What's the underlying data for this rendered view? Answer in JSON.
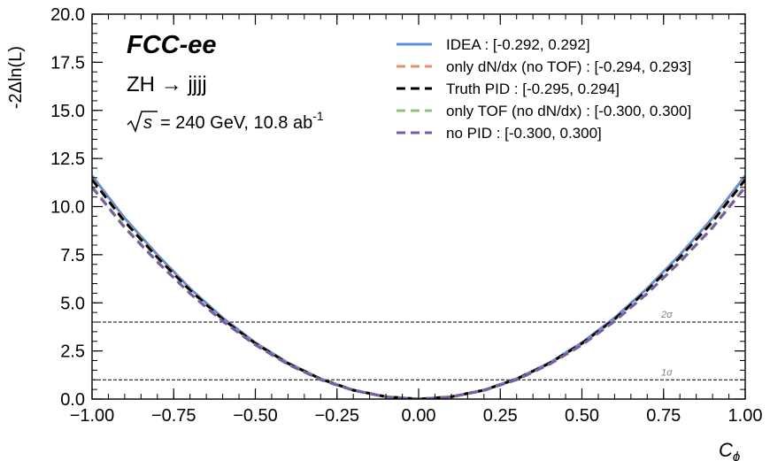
{
  "chart_data": {
    "type": "line",
    "title": "",
    "experiment_label": "FCC-ee",
    "process_label": "ZH → jjjj",
    "energy_label_prefix": "= 240 GeV, 10.8 ab",
    "energy_label_exp": "-1",
    "xlabel": "C",
    "xlabel_sub": "ϕ",
    "ylabel": "-2Δln(L)",
    "xlim": [
      -1.0,
      1.0
    ],
    "ylim": [
      0.0,
      20.0
    ],
    "x_ticks": [
      -1.0,
      -0.75,
      -0.5,
      -0.25,
      0.0,
      0.25,
      0.5,
      0.75,
      1.0
    ],
    "x_tick_labels": [
      "−1.00",
      "−0.75",
      "−0.50",
      "−0.25",
      "0.00",
      "0.25",
      "0.50",
      "0.75",
      "1.00"
    ],
    "y_ticks": [
      0.0,
      2.5,
      5.0,
      7.5,
      10.0,
      12.5,
      15.0,
      17.5,
      20.0
    ],
    "y_tick_labels": [
      "0.0",
      "2.5",
      "5.0",
      "7.5",
      "10.0",
      "12.5",
      "15.0",
      "17.5",
      "20.0"
    ],
    "grid": false,
    "legend_position": "top-right",
    "reference_lines": [
      {
        "y": 1.0,
        "label": "1σ"
      },
      {
        "y": 4.0,
        "label": "2σ"
      }
    ],
    "series": [
      {
        "name": "IDEA : [-0.292, 0.292]",
        "color": "#5b8fdb",
        "dash": "solid",
        "x": [
          -1.0,
          -0.9,
          -0.8,
          -0.7,
          -0.6,
          -0.5,
          -0.4,
          -0.3,
          -0.2,
          -0.1,
          0.0,
          0.1,
          0.2,
          0.3,
          0.4,
          0.5,
          0.6,
          0.7,
          0.8,
          0.9,
          1.0
        ],
        "y": [
          11.6,
          9.4,
          7.5,
          5.75,
          4.22,
          2.93,
          1.88,
          1.06,
          0.47,
          0.12,
          0.0,
          0.12,
          0.47,
          1.06,
          1.88,
          2.93,
          4.22,
          5.75,
          7.5,
          9.4,
          11.6
        ]
      },
      {
        "name": "only dN/dx (no TOF) : [-0.294, 0.293]",
        "color": "#e8906c",
        "dash": "dashed",
        "x": [
          -1.0,
          -0.9,
          -0.8,
          -0.7,
          -0.6,
          -0.5,
          -0.4,
          -0.3,
          -0.2,
          -0.1,
          0.0,
          0.1,
          0.2,
          0.3,
          0.4,
          0.5,
          0.6,
          0.7,
          0.8,
          0.9,
          1.0
        ],
        "y": [
          11.45,
          9.27,
          7.4,
          5.68,
          4.17,
          2.9,
          1.86,
          1.05,
          0.46,
          0.12,
          0.0,
          0.12,
          0.46,
          1.05,
          1.86,
          2.9,
          4.17,
          5.68,
          7.4,
          9.27,
          11.45
        ]
      },
      {
        "name": "Truth PID : [-0.295, 0.294]",
        "color": "#000000",
        "dash": "dashed",
        "x": [
          -1.0,
          -0.9,
          -0.8,
          -0.7,
          -0.6,
          -0.5,
          -0.4,
          -0.3,
          -0.2,
          -0.1,
          0.0,
          0.1,
          0.2,
          0.3,
          0.4,
          0.5,
          0.6,
          0.7,
          0.8,
          0.9,
          1.0
        ],
        "y": [
          11.4,
          9.22,
          7.36,
          5.65,
          4.15,
          2.89,
          1.85,
          1.04,
          0.46,
          0.12,
          0.0,
          0.12,
          0.46,
          1.04,
          1.85,
          2.89,
          4.15,
          5.65,
          7.36,
          9.22,
          11.4
        ]
      },
      {
        "name": "only TOF (no dN/dx) : [-0.300, 0.300]",
        "color": "#8cc47a",
        "dash": "dashed",
        "x": [
          -1.0,
          -0.9,
          -0.8,
          -0.7,
          -0.6,
          -0.5,
          -0.4,
          -0.3,
          -0.2,
          -0.1,
          0.0,
          0.1,
          0.2,
          0.3,
          0.4,
          0.5,
          0.6,
          0.7,
          0.8,
          0.9,
          1.0
        ],
        "y": [
          11.05,
          8.95,
          7.15,
          5.5,
          4.05,
          2.82,
          1.8,
          1.01,
          0.45,
          0.11,
          0.0,
          0.11,
          0.45,
          1.01,
          1.8,
          2.82,
          4.05,
          5.5,
          7.15,
          8.95,
          11.05
        ]
      },
      {
        "name": "no PID : [-0.300, 0.300]",
        "color": "#7b5aa6",
        "dash": "dashed",
        "x": [
          -1.0,
          -0.9,
          -0.8,
          -0.7,
          -0.6,
          -0.5,
          -0.4,
          -0.3,
          -0.2,
          -0.1,
          0.0,
          0.1,
          0.2,
          0.3,
          0.4,
          0.5,
          0.6,
          0.7,
          0.8,
          0.9,
          1.0
        ],
        "y": [
          11.0,
          8.9,
          7.12,
          5.48,
          4.04,
          2.81,
          1.8,
          1.0,
          0.45,
          0.11,
          0.0,
          0.11,
          0.45,
          1.0,
          1.8,
          2.81,
          4.04,
          5.48,
          7.12,
          8.9,
          11.0
        ]
      }
    ]
  }
}
